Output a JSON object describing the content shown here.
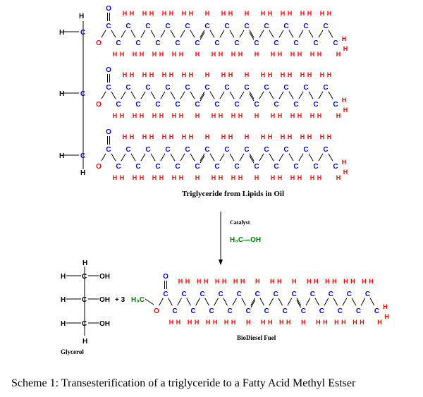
{
  "labels": {
    "triglyceride": "Triglyceride from Lipids in Oil",
    "catalyst": "Catalyst",
    "methanol": "H₃C—OH",
    "biodiesel": "BioDiesel Fuel",
    "glycerol": "Glycerol",
    "plus": "+  3",
    "caption": "Scheme 1: Transesterification of a triglyceride to a Fatty Acid Methyl Estser"
  },
  "atoms": {
    "carbon": "C",
    "hydrogen": "H",
    "oxygen": "O",
    "hydroxyl": "OH",
    "methyl": "H₃C",
    "double_bond": "C=C"
  },
  "colors": {
    "carbon": "#0000ff",
    "hydrogen": "#ff0000",
    "oxygen": "#ff0000",
    "carbonyl_oxygen": "#0000ff",
    "methyl": "#008000",
    "glycerol_backbone": "#000000",
    "text": "#000000"
  }
}
